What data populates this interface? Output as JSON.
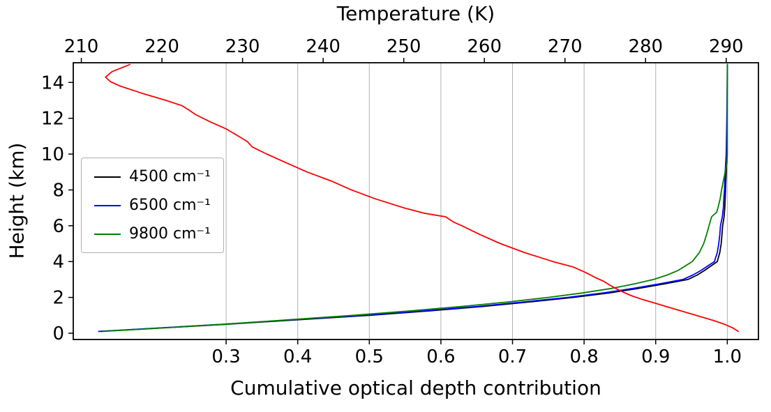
{
  "figure": {
    "background": "#ffffff",
    "axis_color": "#000000"
  },
  "chart_data": {
    "type": "line",
    "top_xlabel": "Temperature (K)",
    "bottom_xlabel": "Cumulative optical depth contribution",
    "ylabel": "Height (km)",
    "grid": {
      "vertical": true,
      "horizontal": false,
      "color": "#b0b0b0"
    },
    "legend_position": "upper-left",
    "axes": {
      "optical_depth": {
        "min": 0.0865,
        "max": 1.0435,
        "ticks": [
          0.3,
          0.4,
          0.5,
          0.6,
          0.7,
          0.8,
          0.9,
          1.0
        ],
        "tick_labels": [
          "0.3",
          "0.4",
          "0.5",
          "0.6",
          "0.7",
          "0.8",
          "0.9",
          "1.0"
        ]
      },
      "temperature": {
        "min": 209,
        "max": 294,
        "ticks": [
          210,
          220,
          230,
          240,
          250,
          260,
          270,
          280,
          290
        ],
        "tick_labels": [
          "210",
          "220",
          "230",
          "240",
          "250",
          "260",
          "270",
          "280",
          "290"
        ]
      },
      "height": {
        "min": -0.35,
        "max": 15.1,
        "ticks": [
          0,
          2,
          4,
          6,
          8,
          10,
          12,
          14
        ],
        "tick_labels": [
          "0",
          "2",
          "4",
          "6",
          "8",
          "10",
          "12",
          "14"
        ]
      }
    },
    "series": [
      {
        "id": "od-4500",
        "name": "4500 cm⁻¹",
        "color": "#000000",
        "axis": "optical_depth",
        "in_legend": true,
        "heights": [
          0.1,
          0.25,
          0.5,
          0.75,
          1.0,
          1.25,
          1.5,
          1.75,
          2.0,
          2.25,
          2.5,
          2.75,
          3.0,
          3.25,
          3.5,
          4.0,
          4.5,
          5.0,
          5.5,
          6.0,
          6.5,
          7.0,
          7.5,
          8.0,
          8.5,
          9.0,
          9.5,
          10.0,
          11.0,
          12.0,
          13.0,
          14.0,
          15.0
        ],
        "values": [
          0.125,
          0.19,
          0.3,
          0.4,
          0.5,
          0.585,
          0.66,
          0.725,
          0.785,
          0.835,
          0.875,
          0.912,
          0.945,
          0.958,
          0.968,
          0.986,
          0.9895,
          0.9915,
          0.9925,
          0.9935,
          0.9955,
          0.9965,
          0.997,
          0.9975,
          0.998,
          0.9985,
          0.999,
          0.9992,
          0.9995,
          0.9997,
          0.9998,
          0.9999,
          1.0
        ]
      },
      {
        "id": "od-6500",
        "name": "6500 cm⁻¹",
        "color": "#0000ff",
        "axis": "optical_depth",
        "in_legend": true,
        "heights": [
          0.1,
          0.25,
          0.5,
          0.75,
          1.0,
          1.25,
          1.5,
          1.75,
          2.0,
          2.25,
          2.5,
          2.75,
          3.0,
          3.25,
          3.5,
          4.0,
          4.5,
          5.0,
          5.5,
          6.0,
          6.5,
          7.0,
          7.5,
          8.0,
          8.5,
          9.0,
          9.5,
          10.0,
          11.0,
          12.0,
          13.0,
          14.0,
          15.0
        ],
        "values": [
          0.122,
          0.186,
          0.295,
          0.393,
          0.492,
          0.577,
          0.652,
          0.717,
          0.777,
          0.827,
          0.868,
          0.905,
          0.938,
          0.952,
          0.963,
          0.982,
          0.986,
          0.988,
          0.9895,
          0.9905,
          0.993,
          0.9945,
          0.9952,
          0.996,
          0.9965,
          0.997,
          0.9978,
          0.9985,
          0.999,
          0.9994,
          0.9997,
          0.9999,
          1.0
        ]
      },
      {
        "id": "od-9800",
        "name": "9800 cm⁻¹",
        "color": "#008000",
        "axis": "optical_depth",
        "in_legend": true,
        "heights": [
          0.1,
          0.25,
          0.5,
          0.75,
          1.0,
          1.25,
          1.5,
          1.75,
          2.0,
          2.25,
          2.5,
          2.75,
          3.0,
          3.25,
          3.5,
          4.0,
          4.5,
          5.0,
          5.5,
          6.0,
          6.5,
          6.75,
          7.0,
          7.5,
          8.0,
          8.5,
          9.0,
          9.5,
          10.0,
          15.0
        ],
        "values": [
          0.128,
          0.192,
          0.296,
          0.388,
          0.478,
          0.558,
          0.63,
          0.695,
          0.75,
          0.798,
          0.838,
          0.87,
          0.897,
          0.916,
          0.931,
          0.951,
          0.961,
          0.967,
          0.971,
          0.9745,
          0.978,
          0.985,
          0.987,
          0.99,
          0.992,
          0.9945,
          0.997,
          0.9995,
          1.0,
          1.0
        ]
      },
      {
        "id": "temperature-profile",
        "name": "Temperature profile",
        "color": "#ff0000",
        "axis": "temperature",
        "in_legend": false,
        "heights": [
          15.0,
          14.6,
          14.3,
          14.05,
          13.8,
          13.4,
          13.0,
          12.7,
          12.5,
          12.2,
          11.8,
          11.4,
          11.0,
          10.7,
          10.4,
          10.0,
          9.5,
          9.0,
          8.5,
          8.0,
          7.5,
          7.0,
          6.7,
          6.5,
          6.2,
          6.0,
          5.5,
          5.0,
          4.5,
          4.0,
          3.7,
          3.4,
          3.1,
          2.9,
          2.7,
          2.5,
          2.3,
          2.1,
          1.9,
          1.7,
          1.5,
          1.3,
          1.1,
          0.9,
          0.7,
          0.5,
          0.3,
          0.1
        ],
        "values": [
          216.0,
          213.8,
          213.0,
          213.6,
          214.8,
          217.5,
          220.5,
          222.5,
          223.2,
          224.2,
          226.0,
          228.0,
          229.5,
          230.6,
          231.2,
          233.0,
          235.5,
          238.0,
          241.0,
          243.5,
          246.5,
          250.0,
          252.5,
          255.2,
          256.2,
          257.2,
          259.5,
          262.0,
          265.0,
          268.5,
          271.0,
          272.5,
          273.8,
          274.8,
          275.5,
          276.3,
          277.2,
          278.2,
          279.5,
          281.0,
          282.5,
          284.0,
          285.5,
          287.0,
          288.5,
          289.8,
          290.8,
          291.5
        ]
      }
    ]
  }
}
